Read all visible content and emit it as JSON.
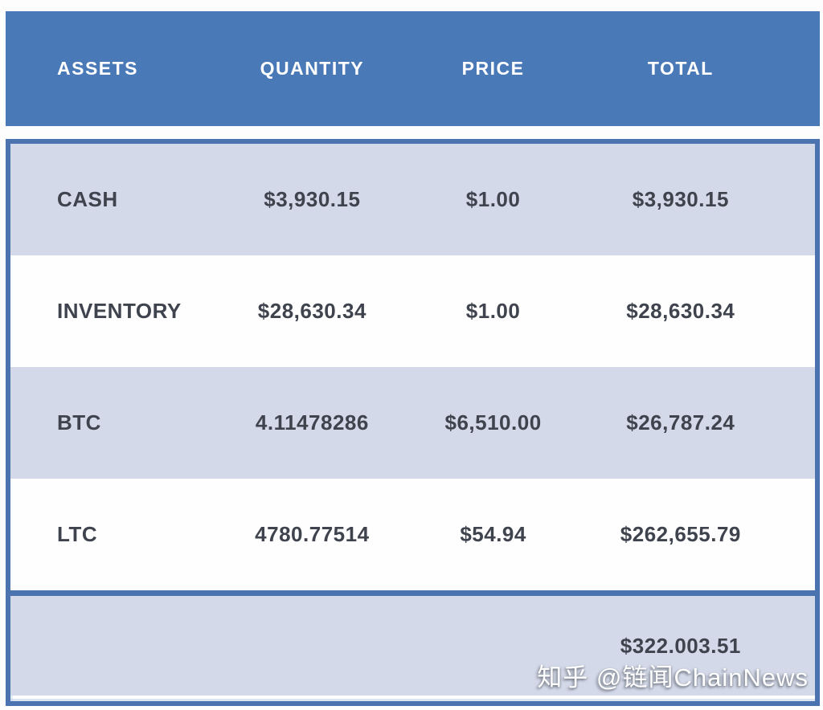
{
  "colors": {
    "header_bg": "#4a79b7",
    "border_blue": "#4a73b0",
    "row_shaded": "#d3d9e8",
    "row_white": "#fefefe",
    "text_dark": "#3e434d",
    "text_light": "#ffffff",
    "page_bg": "#fdfdfd"
  },
  "table": {
    "columns": [
      "ASSETS",
      "QUANTITY",
      "PRICE",
      "TOTAL"
    ],
    "rows": [
      {
        "asset": "CASH",
        "quantity": "$3,930.15",
        "price": "$1.00",
        "total": "$3,930.15"
      },
      {
        "asset": "INVENTORY",
        "quantity": "$28,630.34",
        "price": "$1.00",
        "total": "$28,630.34"
      },
      {
        "asset": "BTC",
        "quantity": "4.11478286",
        "price": "$6,510.00",
        "total": "$26,787.24"
      },
      {
        "asset": "LTC",
        "quantity": "4780.77514",
        "price": "$54.94",
        "total": "$262,655.79"
      }
    ],
    "grand_total": "$322.003.51"
  },
  "watermark": {
    "text": "知乎 @链闻ChainNews"
  },
  "chart_data": {
    "type": "table",
    "title": "",
    "columns": [
      "ASSETS",
      "QUANTITY",
      "PRICE",
      "TOTAL"
    ],
    "rows": [
      [
        "CASH",
        "$3,930.15",
        "$1.00",
        "$3,930.15"
      ],
      [
        "INVENTORY",
        "$28,630.34",
        "$1.00",
        "$28,630.34"
      ],
      [
        "BTC",
        "4.11478286",
        "$6,510.00",
        "$26,787.24"
      ],
      [
        "LTC",
        "4780.77514",
        "$54.94",
        "$262,655.79"
      ]
    ],
    "footer": {
      "grand_total": "$322.003.51"
    },
    "layout": {
      "header_fill": "#4a79b7",
      "alternating_rows": true,
      "shaded_fill": "#d3d9e8"
    }
  }
}
